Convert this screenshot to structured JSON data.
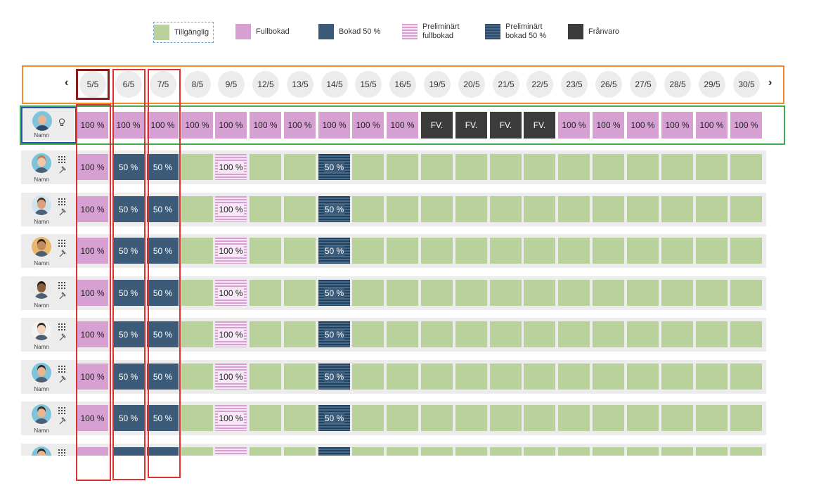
{
  "legend": [
    {
      "label": "Tillgänglig",
      "type": "available"
    },
    {
      "label": "Fullbokad",
      "type": "full"
    },
    {
      "label": "Bokad 50 %",
      "type": "half"
    },
    {
      "label": "Preliminärt\nfullbokad",
      "type": "pfull"
    },
    {
      "label": "Preliminärt\nbokad 50 %",
      "type": "phalf"
    },
    {
      "label": "Frånvaro",
      "type": "absent"
    }
  ],
  "nav": {
    "prev_icon": "‹",
    "next_icon": "›"
  },
  "dates": [
    "5/5",
    "6/5",
    "7/5",
    "8/5",
    "9/5",
    "12/5",
    "13/5",
    "14/5",
    "15/5",
    "16/5",
    "19/5",
    "20/5",
    "21/5",
    "22/5",
    "23/5",
    "26/5",
    "27/5",
    "28/5",
    "29/5",
    "30/5"
  ],
  "summary_row": {
    "name": "Namn",
    "icon": "lightbulb-icon",
    "cells": [
      {
        "type": "full",
        "text": "100 %"
      },
      {
        "type": "full",
        "text": "100 %"
      },
      {
        "type": "full",
        "text": "100 %"
      },
      {
        "type": "full",
        "text": "100 %"
      },
      {
        "type": "full",
        "text": "100 %"
      },
      {
        "type": "full",
        "text": "100 %"
      },
      {
        "type": "full",
        "text": "100 %"
      },
      {
        "type": "full",
        "text": "100 %"
      },
      {
        "type": "full",
        "text": "100 %"
      },
      {
        "type": "full",
        "text": "100 %"
      },
      {
        "type": "absent",
        "text": "FV."
      },
      {
        "type": "absent",
        "text": "FV."
      },
      {
        "type": "absent",
        "text": "FV."
      },
      {
        "type": "absent",
        "text": "FV."
      },
      {
        "type": "full",
        "text": "100 %"
      },
      {
        "type": "full",
        "text": "100 %"
      },
      {
        "type": "full",
        "text": "100 %"
      },
      {
        "type": "full",
        "text": "100 %"
      },
      {
        "type": "full",
        "text": "100 %"
      },
      {
        "type": "full",
        "text": "100 %"
      }
    ]
  },
  "person_row_cells": [
    {
      "type": "full",
      "text": "100 %"
    },
    {
      "type": "half",
      "text": "50 %"
    },
    {
      "type": "half",
      "text": "50 %"
    },
    {
      "type": "avail",
      "text": ""
    },
    {
      "type": "pfull",
      "text": "100 %"
    },
    {
      "type": "avail",
      "text": ""
    },
    {
      "type": "avail",
      "text": ""
    },
    {
      "type": "phalf",
      "text": "50 %"
    },
    {
      "type": "avail",
      "text": ""
    },
    {
      "type": "avail",
      "text": ""
    },
    {
      "type": "avail",
      "text": ""
    },
    {
      "type": "avail",
      "text": ""
    },
    {
      "type": "avail",
      "text": ""
    },
    {
      "type": "avail",
      "text": ""
    },
    {
      "type": "avail",
      "text": ""
    },
    {
      "type": "avail",
      "text": ""
    },
    {
      "type": "avail",
      "text": ""
    },
    {
      "type": "avail",
      "text": ""
    },
    {
      "type": "avail",
      "text": ""
    },
    {
      "type": "avail",
      "text": ""
    }
  ],
  "people": [
    {
      "name": "Namn",
      "skin": "#f0c8a8",
      "hair": "#c27a3a",
      "bg": "#7ec3dc"
    },
    {
      "name": "Namn",
      "skin": "#d9a27c",
      "hair": "#4a3324",
      "bg": "#cfe3ee"
    },
    {
      "name": "Namn",
      "skin": "#c58a5c",
      "hair": "#2b1e16",
      "bg": "#e8b76a"
    },
    {
      "name": "Namn",
      "skin": "#8a5a3c",
      "hair": "#1e140e",
      "bg": "#e9e9e9"
    },
    {
      "name": "Namn",
      "skin": "#f2d3bd",
      "hair": "#2d2520",
      "bg": "#f3f3f3"
    },
    {
      "name": "Namn",
      "skin": "#e7b590",
      "hair": "#2f2a26",
      "bg": "#7ec3dc"
    },
    {
      "name": "Namn",
      "skin": "#e7b590",
      "hair": "#2f2a26",
      "bg": "#7ec3dc"
    },
    {
      "name": "",
      "skin": "#e7b590",
      "hair": "#2f2a26",
      "bg": "#7ec3dc"
    }
  ],
  "role_icons": [
    "grid-icon",
    "hammer-icon"
  ],
  "colors": {
    "available": "#b9d29b",
    "full": "#d6a0d2",
    "half": "#3c5b78",
    "absent": "#3b3b3b",
    "header_box": "#f08a2c",
    "summary_box": "#3fae4a",
    "name_box": "#2f4fb3",
    "column_box": "#e03030",
    "selected_date_box": "#8b1a1a"
  }
}
